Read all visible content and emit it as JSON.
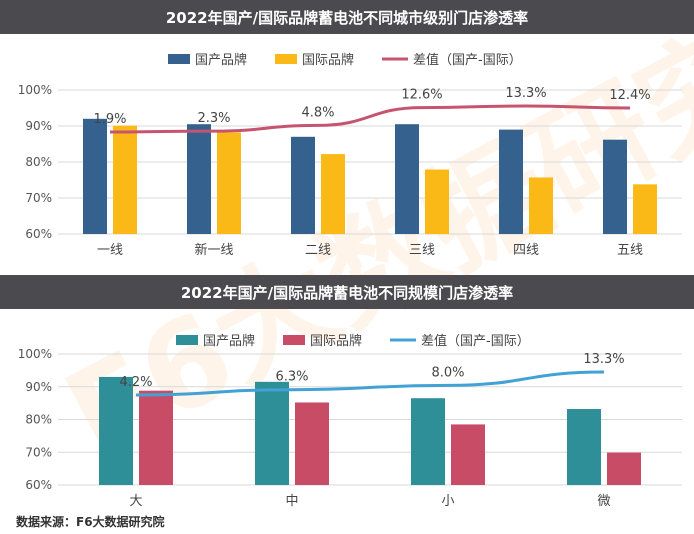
{
  "watermark": "F6大数据研究院",
  "source": "数据来源：F6大数据研究院",
  "colors": {
    "chart1_domestic": "#34618e",
    "chart1_intl": "#fbb917",
    "chart1_line": "#c65470",
    "chart2_domestic": "#2f8f98",
    "chart2_intl": "#c94c66",
    "chart2_line": "#42a2d6",
    "grid": "#d9d9d9"
  },
  "chart_data": [
    {
      "type": "bar",
      "title": "2022年国产/国际品牌蓄电池不同城市级别门店渗透率",
      "categories": [
        "一线",
        "新一线",
        "二线",
        "三线",
        "四线",
        "五线"
      ],
      "series": [
        {
          "name": "国产品牌",
          "values": [
            92,
            90.5,
            87,
            90.5,
            89,
            86.2
          ]
        },
        {
          "name": "国际品牌",
          "values": [
            90.1,
            88.2,
            82.2,
            77.9,
            75.7,
            73.8
          ]
        }
      ],
      "line": {
        "name": "差值（国产-国际）",
        "values": [
          1.9,
          2.3,
          4.8,
          12.6,
          13.3,
          12.4
        ],
        "labels": [
          "1.9%",
          "2.3%",
          "4.8%",
          "12.6%",
          "13.3%",
          "12.4%"
        ]
      },
      "ylim": [
        60,
        100
      ],
      "yticks": [
        "60%",
        "70%",
        "80%",
        "90%",
        "100%"
      ],
      "legend_position": "top",
      "grid": true
    },
    {
      "type": "bar",
      "title": "2022年国产/国际品牌蓄电池不同规模门店渗透率",
      "categories": [
        "大",
        "中",
        "小",
        "微"
      ],
      "series": [
        {
          "name": "国产品牌",
          "values": [
            93,
            91.5,
            86.5,
            83.2
          ]
        },
        {
          "name": "国际品牌",
          "values": [
            88.8,
            85.2,
            78.5,
            69.9
          ]
        }
      ],
      "line": {
        "name": "差值（国产-国际）",
        "values": [
          4.2,
          6.3,
          8.0,
          13.3
        ],
        "labels": [
          "4.2%",
          "6.3%",
          "8.0%",
          "13.3%"
        ]
      },
      "ylim": [
        60,
        100
      ],
      "yticks": [
        "60%",
        "70%",
        "80%",
        "90%",
        "100%"
      ],
      "legend_position": "top",
      "grid": true
    }
  ]
}
